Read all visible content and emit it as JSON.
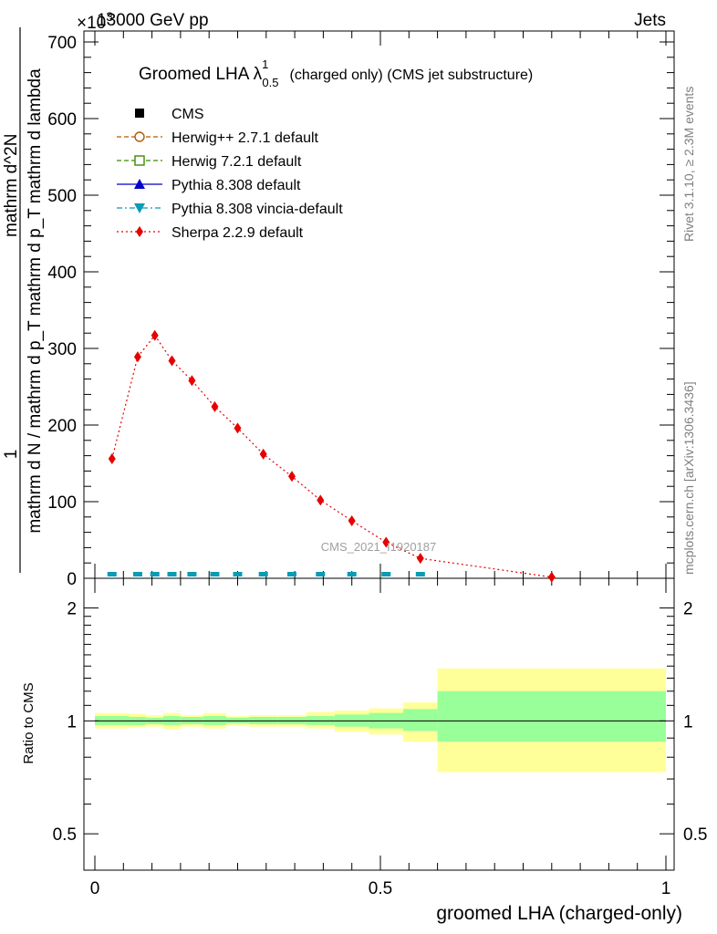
{
  "header": {
    "left": "13000 GeV pp",
    "right": "Jets",
    "exponent": "×10",
    "exponent_power": "3"
  },
  "side_labels": {
    "rivet": "Rivet 3.1.10, ≥ 2.3M events",
    "mcplots": "mcplots.cern.ch [arXiv:1306.3436]"
  },
  "plot_title": {
    "text": "Groomed LHA λ",
    "sup": "1",
    "sub": "0.5",
    "rest": "(charged only) (CMS jet substructure)"
  },
  "watermark": "CMS_2021_I1920187",
  "y_title_top_numerator": "1",
  "y_title_top_denominator": "mathrm d N / mathrm d p_T mathrm d p_T mathrm d lambda",
  "y_title_top_right": "mathrm d^2N",
  "y_title_bottom": "Ratio to CMS",
  "x_title": "groomed LHA (charged-only)",
  "legend": [
    {
      "label": "CMS",
      "color": "#000000",
      "marker": "square-filled",
      "line": "none"
    },
    {
      "label": "Herwig++ 2.7.1 default",
      "color": "#b25a00",
      "marker": "circle-open",
      "line": "dashed"
    },
    {
      "label": "Herwig 7.2.1 default",
      "color": "#3a8a00",
      "marker": "square-open",
      "line": "dashed"
    },
    {
      "label": "Pythia 8.308 default",
      "color": "#0000cc",
      "marker": "triangle-up",
      "line": "solid"
    },
    {
      "label": "Pythia 8.308 vincia-default",
      "color": "#0a9bb5",
      "marker": "triangle-down",
      "line": "dashdot"
    },
    {
      "label": "Sherpa 2.2.9 default",
      "color": "#e60000",
      "marker": "diamond",
      "line": "dotted"
    }
  ],
  "chart_data": {
    "type": "line",
    "x_range": [
      0,
      1
    ],
    "x_ticks": [
      "0",
      "0.5",
      "1"
    ],
    "top_panel": {
      "y_range": [
        0,
        700000
      ],
      "y_ticks": [
        "0",
        "100",
        "200",
        "300",
        "400",
        "500",
        "600",
        "700"
      ],
      "y_multiplier": "×10^3",
      "series": [
        {
          "name": "Sherpa 2.2.9 default",
          "x": [
            0.03,
            0.075,
            0.105,
            0.135,
            0.17,
            0.21,
            0.25,
            0.295,
            0.345,
            0.395,
            0.45,
            0.51,
            0.57,
            0.8
          ],
          "y": [
            156000,
            289000,
            317000,
            284000,
            258000,
            224000,
            196000,
            162000,
            133000,
            102000,
            75000,
            47000,
            26000,
            1500
          ]
        },
        {
          "name": "CMS",
          "x": [
            0.03,
            0.075,
            0.105,
            0.135,
            0.17,
            0.21,
            0.25,
            0.295,
            0.345,
            0.395,
            0.45,
            0.51,
            0.57,
            0.8
          ],
          "y": [
            1,
            1,
            1,
            1,
            1,
            1,
            1,
            1,
            1,
            1,
            1,
            1,
            1,
            1
          ]
        }
      ]
    },
    "ratio_panel": {
      "y_range": [
        0.4,
        2.4
      ],
      "y_ticks": [
        "0.5",
        "1",
        "2"
      ],
      "bins": [
        {
          "lo": 0.0,
          "hi": 0.06,
          "green": [
            0.975,
            1.03
          ],
          "yellow": [
            0.955,
            1.05
          ]
        },
        {
          "lo": 0.06,
          "hi": 0.09,
          "green": [
            0.975,
            1.025
          ],
          "yellow": [
            0.96,
            1.045
          ]
        },
        {
          "lo": 0.09,
          "hi": 0.12,
          "green": [
            0.98,
            1.02
          ],
          "yellow": [
            0.965,
            1.035
          ]
        },
        {
          "lo": 0.12,
          "hi": 0.15,
          "green": [
            0.975,
            1.03
          ],
          "yellow": [
            0.95,
            1.05
          ]
        },
        {
          "lo": 0.15,
          "hi": 0.19,
          "green": [
            0.98,
            1.025
          ],
          "yellow": [
            0.965,
            1.035
          ]
        },
        {
          "lo": 0.19,
          "hi": 0.23,
          "green": [
            0.975,
            1.03
          ],
          "yellow": [
            0.955,
            1.05
          ]
        },
        {
          "lo": 0.23,
          "hi": 0.27,
          "green": [
            0.985,
            1.02
          ],
          "yellow": [
            0.97,
            1.03
          ]
        },
        {
          "lo": 0.27,
          "hi": 0.32,
          "green": [
            0.98,
            1.025
          ],
          "yellow": [
            0.965,
            1.035
          ]
        },
        {
          "lo": 0.32,
          "hi": 0.37,
          "green": [
            0.98,
            1.025
          ],
          "yellow": [
            0.965,
            1.035
          ]
        },
        {
          "lo": 0.37,
          "hi": 0.42,
          "green": [
            0.975,
            1.03
          ],
          "yellow": [
            0.955,
            1.055
          ]
        },
        {
          "lo": 0.42,
          "hi": 0.48,
          "green": [
            0.965,
            1.04
          ],
          "yellow": [
            0.935,
            1.065
          ]
        },
        {
          "lo": 0.48,
          "hi": 0.54,
          "green": [
            0.955,
            1.05
          ],
          "yellow": [
            0.92,
            1.08
          ]
        },
        {
          "lo": 0.54,
          "hi": 0.6,
          "green": [
            0.94,
            1.075
          ],
          "yellow": [
            0.88,
            1.12
          ]
        },
        {
          "lo": 0.6,
          "hi": 1.0,
          "green": [
            0.88,
            1.2
          ],
          "yellow": [
            0.73,
            1.38
          ]
        }
      ]
    }
  }
}
